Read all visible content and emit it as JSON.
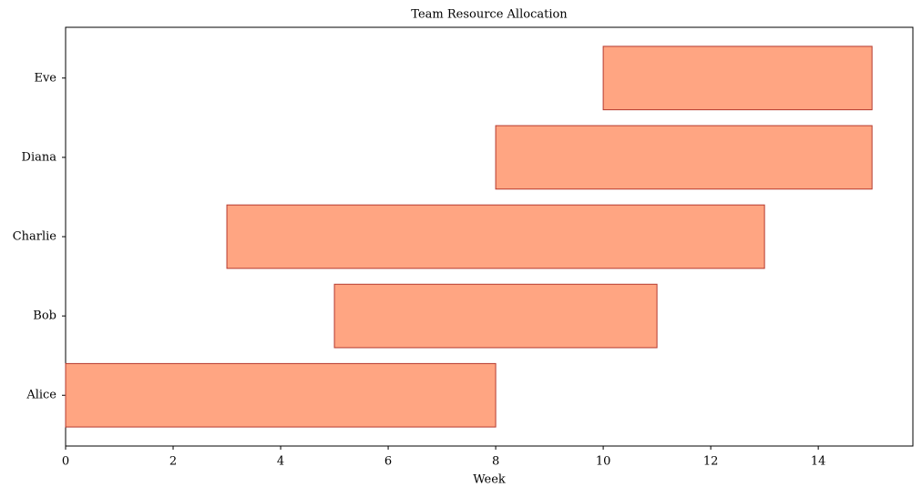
{
  "chart_data": {
    "type": "gantt",
    "title": "Team Resource Allocation",
    "x_label": "Week",
    "categories": [
      "Alice",
      "Bob",
      "Charlie",
      "Diana",
      "Eve"
    ],
    "start": [
      0,
      5,
      3,
      8,
      10
    ],
    "end": [
      8,
      11,
      13,
      15,
      15
    ],
    "color": "#ffa582",
    "edge_color": "#b5392e",
    "xlim": [
      0,
      15.76
    ],
    "xticks": [
      0,
      2,
      4,
      6,
      8,
      10,
      12,
      14
    ]
  }
}
